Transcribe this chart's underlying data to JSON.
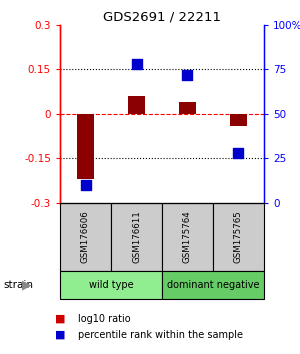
{
  "title": "GDS2691 / 22211",
  "samples": [
    "GSM176606",
    "GSM176611",
    "GSM175764",
    "GSM175765"
  ],
  "log10_ratio": [
    -0.22,
    0.06,
    0.04,
    -0.04
  ],
  "percentile_rank": [
    10,
    78,
    72,
    28
  ],
  "group_configs": [
    {
      "indices": [
        0,
        1
      ],
      "label": "wild type",
      "color": "#90ee90"
    },
    {
      "indices": [
        2,
        3
      ],
      "label": "dominant negative",
      "color": "#66cc66"
    }
  ],
  "ylim_left": [
    -0.3,
    0.3
  ],
  "ylim_right": [
    0,
    100
  ],
  "yticks_left": [
    -0.3,
    -0.15,
    0,
    0.15,
    0.3
  ],
  "ytick_labels_left": [
    "-0.3",
    "-0.15",
    "0",
    "0.15",
    "0.3"
  ],
  "yticks_right": [
    0,
    25,
    50,
    75,
    100
  ],
  "ytick_labels_right": [
    "0",
    "25",
    "50",
    "75",
    "100%"
  ],
  "hlines": [
    [
      -0.15,
      "black",
      "dotted"
    ],
    [
      0,
      "red",
      "dashed"
    ],
    [
      0.15,
      "black",
      "dotted"
    ]
  ],
  "bar_color": "#8b0000",
  "dot_color": "#0000cc",
  "bar_width": 0.35,
  "dot_size": 50,
  "sample_box_color": "#cccccc",
  "legend_items": [
    {
      "color": "#cc0000",
      "label": "log10 ratio"
    },
    {
      "color": "#0000cc",
      "label": "percentile rank within the sample"
    }
  ],
  "strain_label": "strain"
}
